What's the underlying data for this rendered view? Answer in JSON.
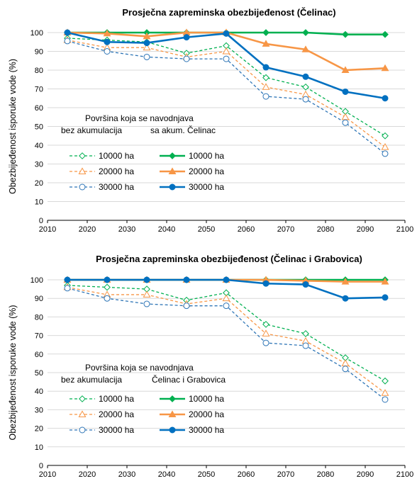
{
  "chart_data": [
    {
      "type": "line",
      "title": "Prosječna zapreminska obezbijeđenost (Čelinac)",
      "ylabel": "Obezbijeđenost isporuke vode (%)",
      "xlabel": "",
      "xlim": [
        2010,
        2100
      ],
      "ylim": [
        0,
        100
      ],
      "xticks": [
        2010,
        2020,
        2030,
        2040,
        2050,
        2060,
        2070,
        2080,
        2090,
        2100
      ],
      "yticks": [
        0,
        10,
        20,
        30,
        40,
        50,
        60,
        70,
        80,
        90,
        100
      ],
      "grid": true,
      "x": [
        2015,
        2025,
        2035,
        2045,
        2055,
        2065,
        2075,
        2085,
        2095
      ],
      "legend": {
        "title": "Površina koja se navodnjava",
        "group_left": "bez akumulacija",
        "group_right": "sa akum. Čelinac",
        "position": "lower-left"
      },
      "series": [
        {
          "name": "10000 ha",
          "group": "left",
          "color": "#00b050",
          "dashed": true,
          "marker": "diamond-open",
          "values": [
            97,
            96,
            95,
            89,
            93,
            76,
            71,
            58,
            45
          ]
        },
        {
          "name": "20000 ha",
          "group": "left",
          "color": "#f79646",
          "dashed": true,
          "marker": "triangle-open",
          "values": [
            96,
            92,
            92,
            87,
            90,
            71,
            67,
            55,
            39
          ]
        },
        {
          "name": "30000 ha",
          "group": "left",
          "color": "#2e75b6",
          "dashed": true,
          "marker": "circle-open",
          "values": [
            95.5,
            90,
            87,
            86,
            86,
            66,
            64.5,
            52,
            35.5
          ]
        },
        {
          "name": "10000 ha",
          "group": "right",
          "color": "#00b050",
          "dashed": false,
          "marker": "diamond",
          "values": [
            100,
            100,
            100,
            100,
            100,
            100,
            100,
            99,
            99
          ]
        },
        {
          "name": "20000 ha",
          "group": "right",
          "color": "#f79646",
          "dashed": false,
          "marker": "triangle",
          "values": [
            100,
            99.5,
            98,
            100,
            100,
            94,
            91,
            80,
            81
          ]
        },
        {
          "name": "30000 ha",
          "group": "right",
          "color": "#0070c0",
          "dashed": false,
          "marker": "circle",
          "values": [
            100,
            95,
            94.5,
            97.5,
            99.5,
            81.5,
            76.5,
            68.5,
            65
          ]
        }
      ]
    },
    {
      "type": "line",
      "title": "Prosječna zapreminska obezbijeđenost (Čelinac i Grabovica)",
      "ylabel": "Obezbijeđenost isporuke vode (%)",
      "xlabel": "",
      "xlim": [
        2010,
        2100
      ],
      "ylim": [
        0,
        100
      ],
      "xticks": [
        2010,
        2020,
        2030,
        2040,
        2050,
        2060,
        2070,
        2080,
        2090,
        2100
      ],
      "yticks": [
        0,
        10,
        20,
        30,
        40,
        50,
        60,
        70,
        80,
        90,
        100
      ],
      "grid": true,
      "x": [
        2015,
        2025,
        2035,
        2045,
        2055,
        2065,
        2075,
        2085,
        2095
      ],
      "legend": {
        "title": "Površina koja se navodnjava",
        "group_left": "bez akumulacija",
        "group_right": "Čelinac i Grabovica",
        "position": "lower-left"
      },
      "series": [
        {
          "name": "10000 ha",
          "group": "left",
          "color": "#00b050",
          "dashed": true,
          "marker": "diamond-open",
          "values": [
            97,
            96,
            95,
            89,
            93,
            76,
            71,
            58,
            45.5
          ]
        },
        {
          "name": "20000 ha",
          "group": "left",
          "color": "#f79646",
          "dashed": true,
          "marker": "triangle-open",
          "values": [
            96,
            92,
            92,
            87,
            90,
            71,
            67,
            55,
            39
          ]
        },
        {
          "name": "30000 ha",
          "group": "left",
          "color": "#2e75b6",
          "dashed": true,
          "marker": "circle-open",
          "values": [
            95.5,
            90,
            87,
            86,
            86,
            66,
            64.5,
            52,
            35.5
          ]
        },
        {
          "name": "10000 ha",
          "group": "right",
          "color": "#00b050",
          "dashed": false,
          "marker": "diamond",
          "values": [
            100,
            100,
            100,
            100,
            100,
            100,
            100,
            100,
            100
          ]
        },
        {
          "name": "20000 ha",
          "group": "right",
          "color": "#f79646",
          "dashed": false,
          "marker": "triangle",
          "values": [
            100,
            100,
            100,
            100,
            100,
            100,
            99.5,
            99,
            99
          ]
        },
        {
          "name": "30000 ha",
          "group": "right",
          "color": "#0070c0",
          "dashed": false,
          "marker": "circle",
          "values": [
            100,
            100,
            100,
            100,
            100,
            98,
            97.5,
            90,
            90.5
          ]
        }
      ]
    }
  ]
}
